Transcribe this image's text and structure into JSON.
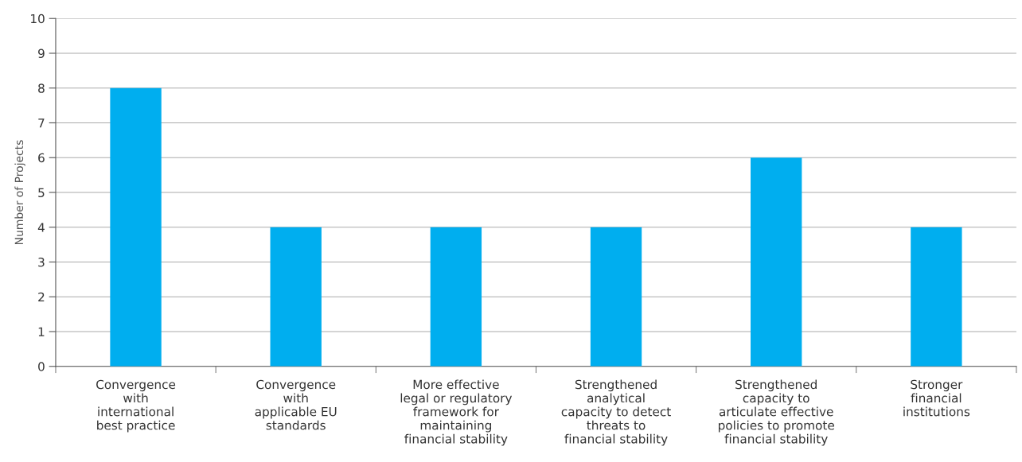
{
  "chart_data": {
    "type": "bar",
    "ylabel": "Number of Projects",
    "categories": [
      "Convergence\nwith\ninternational\nbest practice",
      "Convergence\nwith\napplicable EU\nstandards",
      "More effective\nlegal or regulatory\nframework for\nmaintaining\nfinancial stability",
      "Strengthened\nanalytical\ncapacity to detect\nthreats to\nfinancial stability",
      "Strengthened\ncapacity to\narticulate effective\npolicies to promote\nfinancial stability",
      "Stronger\nfinancial\ninstitutions"
    ],
    "values": [
      8,
      4,
      4,
      4,
      6,
      4
    ],
    "color": "#00aeef",
    "ylim": [
      0,
      10
    ],
    "yticks": [
      0,
      1,
      2,
      3,
      4,
      5,
      6,
      7,
      8,
      9,
      10
    ],
    "grid": "y"
  }
}
